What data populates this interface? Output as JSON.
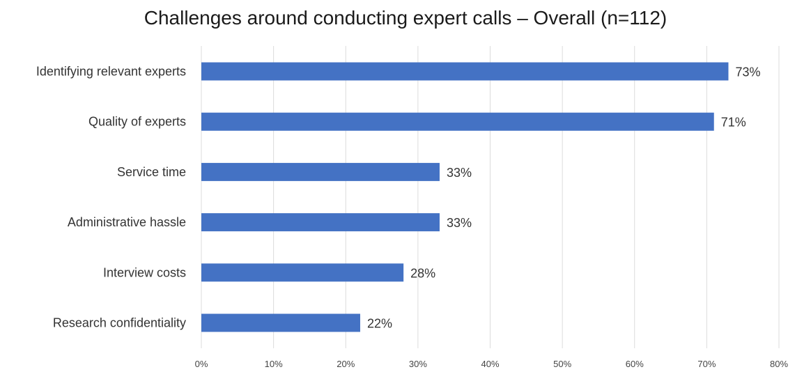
{
  "chart_data": {
    "type": "bar",
    "orientation": "horizontal",
    "title": "Challenges around conducting expert calls – Overall (n=112)",
    "categories": [
      "Identifying relevant experts",
      "Quality of experts",
      "Service time",
      "Administrative hassle",
      "Interview costs",
      "Research confidentiality"
    ],
    "values": [
      73,
      71,
      33,
      33,
      28,
      22
    ],
    "data_labels": [
      "73%",
      "71%",
      "33%",
      "33%",
      "28%",
      "22%"
    ],
    "xlim": [
      0,
      80
    ],
    "x_ticks": [
      "0%",
      "10%",
      "20%",
      "30%",
      "40%",
      "50%",
      "60%",
      "70%",
      "80%"
    ],
    "xlabel": "",
    "ylabel": "",
    "grid": true,
    "bar_color": "#4472C4"
  }
}
